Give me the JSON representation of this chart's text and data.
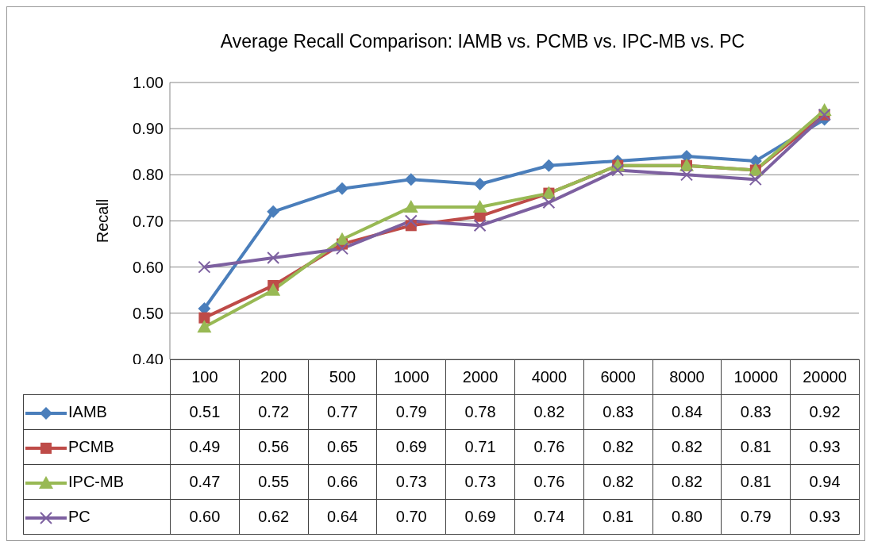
{
  "chart_data": {
    "type": "line",
    "title": "Average Recall Comparison: IAMB vs. PCMB vs. IPC-MB vs. PC",
    "ylabel": "Recall",
    "categories": [
      "100",
      "200",
      "500",
      "1000",
      "2000",
      "4000",
      "6000",
      "8000",
      "10000",
      "20000"
    ],
    "series": [
      {
        "name": "IAMB",
        "color": "#4a7ebb",
        "marker": "diamond",
        "values": [
          0.51,
          0.72,
          0.77,
          0.79,
          0.78,
          0.82,
          0.83,
          0.84,
          0.83,
          0.92
        ],
        "value_labels": [
          "0.51",
          "0.72",
          "0.77",
          "0.79",
          "0.78",
          "0.82",
          "0.83",
          "0.84",
          "0.83",
          "0.92"
        ]
      },
      {
        "name": "PCMB",
        "color": "#be4b48",
        "marker": "square",
        "values": [
          0.49,
          0.56,
          0.65,
          0.69,
          0.71,
          0.76,
          0.82,
          0.82,
          0.81,
          0.93
        ],
        "value_labels": [
          "0.49",
          "0.56",
          "0.65",
          "0.69",
          "0.71",
          "0.76",
          "0.82",
          "0.82",
          "0.81",
          "0.93"
        ]
      },
      {
        "name": "IPC-MB",
        "color": "#98b954",
        "marker": "triangle",
        "values": [
          0.47,
          0.55,
          0.66,
          0.73,
          0.73,
          0.76,
          0.82,
          0.82,
          0.81,
          0.94
        ],
        "value_labels": [
          "0.47",
          "0.55",
          "0.66",
          "0.73",
          "0.73",
          "0.76",
          "0.82",
          "0.82",
          "0.81",
          "0.94"
        ]
      },
      {
        "name": "PC",
        "color": "#7d60a0",
        "marker": "cross",
        "values": [
          0.6,
          0.62,
          0.64,
          0.7,
          0.69,
          0.74,
          0.81,
          0.8,
          0.79,
          0.93
        ],
        "value_labels": [
          "0.60",
          "0.62",
          "0.64",
          "0.70",
          "0.69",
          "0.74",
          "0.81",
          "0.80",
          "0.79",
          "0.93"
        ]
      }
    ],
    "ylim": [
      0.4,
      1.0
    ],
    "yticks": [
      {
        "value": 0.4,
        "label": "0.40"
      },
      {
        "value": 0.5,
        "label": "0.50"
      },
      {
        "value": 0.6,
        "label": "0.60"
      },
      {
        "value": 0.7,
        "label": "0.70"
      },
      {
        "value": 0.8,
        "label": "0.80"
      },
      {
        "value": 0.9,
        "label": "0.90"
      },
      {
        "value": 1.0,
        "label": "1.00"
      }
    ],
    "grid": "y",
    "legend": "bottom left",
    "line_style": "solid"
  }
}
